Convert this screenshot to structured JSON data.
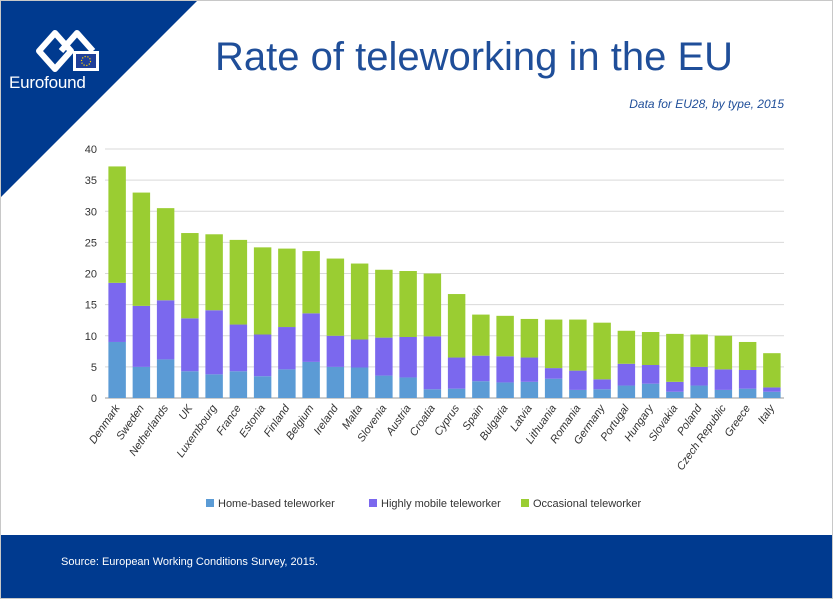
{
  "brand": {
    "name": "Eurofound"
  },
  "header": {
    "title": "Rate of teleworking in the EU",
    "subtitle": "Data for EU28, by type, 2015"
  },
  "footer": {
    "source": "Source: European Working Conditions Survey, 2015."
  },
  "colors": {
    "brand_blue": "#003a8f",
    "title_blue": "#1f4e99",
    "home_based": "#5b9bd5",
    "highly_mobile": "#7b68ee",
    "occasional": "#9acd32"
  },
  "chart_data": {
    "type": "bar",
    "stacked": true,
    "categories": [
      "Denmark",
      "Sweden",
      "Netherlands",
      "UK",
      "Luxembourg",
      "France",
      "Estonia",
      "Finland",
      "Belgium",
      "Ireland",
      "Malta",
      "Slovenia",
      "Austria",
      "Croatia",
      "Cyprus",
      "Spain",
      "Bulgaria",
      "Latvia",
      "Lithuania",
      "Romania",
      "Germany",
      "Portugal",
      "Hungary",
      "Slovakia",
      "Poland",
      "Czech Republic",
      "Greece",
      "Italy"
    ],
    "series": [
      {
        "name": "Home-based teleworker",
        "color": "#5b9bd5",
        "values": [
          9,
          5,
          6.2,
          4.3,
          3.8,
          4.3,
          3.5,
          4.6,
          5.8,
          5,
          4.9,
          3.6,
          3.3,
          1.4,
          1.5,
          2.7,
          2.5,
          2.6,
          3.1,
          1.3,
          1.4,
          2,
          2.3,
          1,
          2,
          1.3,
          1.5,
          1
        ]
      },
      {
        "name": "Highly mobile teleworker",
        "color": "#7b68ee",
        "values": [
          9.5,
          9.8,
          9.5,
          8.5,
          10.3,
          7.5,
          6.7,
          6.8,
          7.8,
          5,
          4.5,
          6.1,
          6.5,
          8.5,
          5,
          4.1,
          4.2,
          3.9,
          1.7,
          3.1,
          1.6,
          3.5,
          3,
          1.6,
          3,
          3.3,
          3,
          0.7
        ]
      },
      {
        "name": "Occasional teleworker",
        "color": "#9acd32",
        "values": [
          18.7,
          18.2,
          14.8,
          13.7,
          12.2,
          13.6,
          14,
          12.6,
          10,
          12.4,
          12.2,
          10.9,
          10.6,
          10.1,
          10.2,
          6.6,
          6.5,
          6.2,
          7.8,
          8.2,
          9.1,
          5.3,
          5.3,
          7.7,
          5.2,
          5.4,
          4.5,
          5.5
        ]
      }
    ],
    "ylim": [
      0,
      40
    ],
    "yticks": [
      0,
      5,
      10,
      15,
      20,
      25,
      30,
      35,
      40
    ],
    "grid": true,
    "legend_position": "bottom"
  }
}
